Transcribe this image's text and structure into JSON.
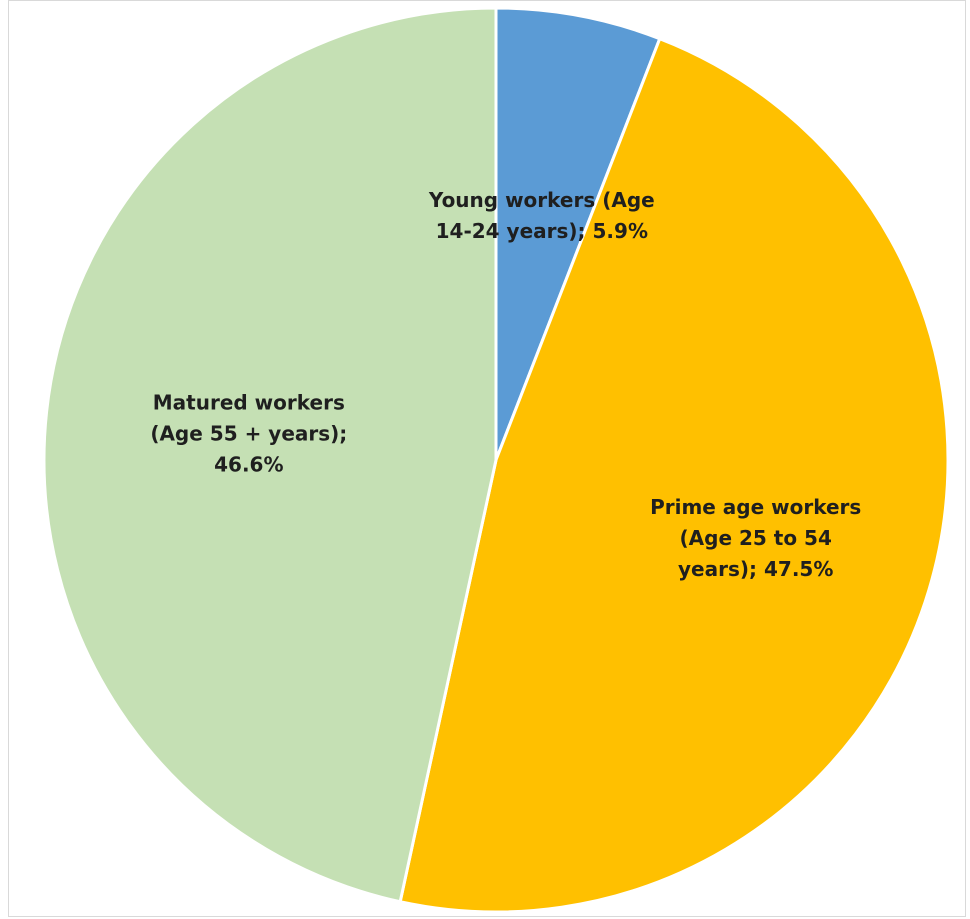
{
  "chart_data": {
    "type": "pie",
    "title": "",
    "start_angle_deg": 0,
    "direction": "clockwise",
    "slice_stroke": "#ffffff",
    "slices": [
      {
        "label": "Young workers (Age 14-24 years)",
        "value": 5.9,
        "value_label": "5.9%",
        "color": "#5b9bd5",
        "label_lines": [
          "Young workers (Age",
          "14-24 years); 5.9%"
        ]
      },
      {
        "label": "Prime age workers (Age 25 to 54 years)",
        "value": 47.5,
        "value_label": "47.5%",
        "color": "#ffc000",
        "label_lines": [
          "Prime age workers",
          "(Age 25 to 54",
          "years); 47.5%"
        ]
      },
      {
        "label": "Matured workers (Age 55 + years)",
        "value": 46.6,
        "value_label": "46.6%",
        "color": "#c5e0b4",
        "label_lines": [
          "Matured workers",
          "(Age 55 + years);",
          "46.6%"
        ]
      }
    ]
  }
}
